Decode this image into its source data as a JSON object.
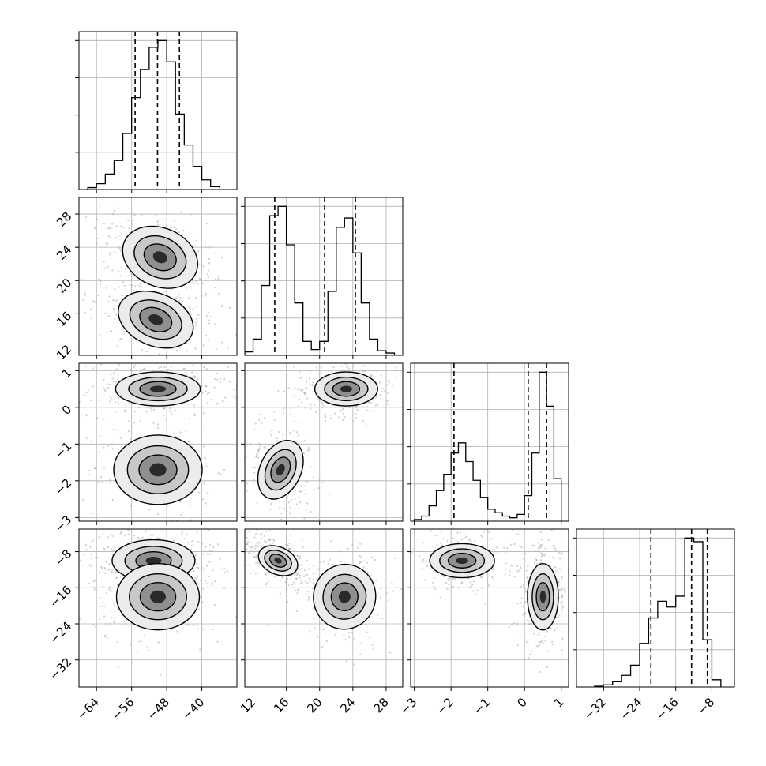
{
  "chart_data": {
    "type": "corner",
    "title": "",
    "grid": true,
    "parameters": [
      {
        "range": [
          -68,
          -32
        ],
        "ticks": [
          -64,
          -56,
          -48,
          -40
        ],
        "tick_labels": [
          "−64",
          "−56",
          "−48",
          "−40"
        ],
        "quantiles": [
          -55.2,
          -50.1,
          -45.1
        ],
        "hist_bins": [
          -66,
          -64,
          -62,
          -60,
          -58,
          -56,
          -54,
          -52,
          -50,
          -48,
          -46,
          -44,
          -42,
          -40,
          -38,
          -36
        ],
        "hist_values": [
          2,
          6,
          16,
          30,
          58,
          95,
          124,
          147,
          154,
          132,
          78,
          46,
          24,
          10,
          3,
          2
        ]
      },
      {
        "range": [
          11,
          30
        ],
        "ticks": [
          12,
          16,
          20,
          24,
          28
        ],
        "tick_labels": [
          "12",
          "16",
          "20",
          "24",
          "28"
        ],
        "quantiles": [
          14.6,
          20.6,
          24.3
        ],
        "hist_bins": [
          11,
          12,
          13,
          14,
          15,
          16,
          17,
          18,
          19,
          20,
          21,
          22,
          23,
          24,
          25,
          26,
          27,
          28,
          29
        ],
        "hist_values": [
          3,
          14,
          60,
          120,
          128,
          95,
          45,
          12,
          5,
          12,
          55,
          110,
          118,
          88,
          45,
          14,
          4,
          2
        ]
      },
      {
        "range": [
          -3.1,
          1.2
        ],
        "ticks": [
          -3,
          -2,
          -1,
          0,
          1
        ],
        "tick_labels": [
          "−3",
          "−2",
          "−1",
          "0",
          "1"
        ],
        "quantiles": [
          -1.92,
          0.1,
          0.6
        ],
        "hist_bins": [
          -3.0,
          -2.8,
          -2.6,
          -2.4,
          -2.2,
          -2.0,
          -1.8,
          -1.6,
          -1.4,
          -1.2,
          -1.0,
          -0.8,
          -0.6,
          -0.4,
          -0.2,
          0.0,
          0.2,
          0.4,
          0.6,
          0.8,
          1.0
        ],
        "hist_values": [
          2,
          6,
          18,
          36,
          55,
          80,
          92,
          70,
          48,
          28,
          14,
          10,
          6,
          4,
          8,
          30,
          80,
          175,
          135,
          50
        ]
      },
      {
        "range": [
          -38,
          -3
        ],
        "ticks": [
          -32,
          -24,
          -16,
          -8
        ],
        "tick_labels": [
          "−32",
          "−24",
          "−16",
          "−8"
        ],
        "quantiles": [
          -21.5,
          -12.5,
          -9.0
        ],
        "hist_bins": [
          -34,
          -32,
          -30,
          -28,
          -26,
          -24,
          -22,
          -20,
          -18,
          -16,
          -14,
          -12,
          -10,
          -8,
          -6
        ],
        "hist_values": [
          1,
          3,
          8,
          16,
          30,
          60,
          95,
          118,
          110,
          125,
          205,
          200,
          65,
          10
        ]
      }
    ],
    "blobs": {
      "1-0": [
        {
          "cx": -49.5,
          "cy": 22.8,
          "sx": 4.6,
          "sy": 2.0,
          "rho": -0.55,
          "w": 1.0
        },
        {
          "cx": -50.5,
          "cy": 15.3,
          "sx": 4.6,
          "sy": 1.8,
          "rho": -0.55,
          "w": 1.0
        }
      ],
      "2-0": [
        {
          "cx": -50,
          "cy": 0.5,
          "sx": 4.6,
          "sy": 0.22,
          "rho": 0,
          "w": 1.2
        },
        {
          "cx": -50,
          "cy": -1.7,
          "sx": 4.8,
          "sy": 0.45,
          "rho": 0,
          "w": 0.75
        }
      ],
      "3-0": [
        {
          "cx": -51,
          "cy": -10,
          "sx": 4.5,
          "sy": 2.2,
          "rho": 0,
          "w": 1.2
        },
        {
          "cx": -50,
          "cy": -18,
          "sx": 4.5,
          "sy": 3.5,
          "rho": 0,
          "w": 0.7
        }
      ],
      "2-1": [
        {
          "cx": 23.2,
          "cy": 0.5,
          "sx": 1.8,
          "sy": 0.22,
          "rho": 0,
          "w": 1.2
        },
        {
          "cx": 15.3,
          "cy": -1.7,
          "sx": 1.2,
          "sy": 0.42,
          "rho": -0.3,
          "w": 0.85
        }
      ],
      "3-1": [
        {
          "cx": 15.0,
          "cy": -10,
          "sx": 1.3,
          "sy": 1.8,
          "rho": -0.6,
          "w": 1.2
        },
        {
          "cx": 23.0,
          "cy": -18,
          "sx": 1.8,
          "sy": 3.5,
          "rho": -0.2,
          "w": 0.75
        }
      ],
      "3-2": [
        {
          "cx": -1.7,
          "cy": -10,
          "sx": 0.42,
          "sy": 1.8,
          "rho": 0,
          "w": 1.1
        },
        {
          "cx": 0.5,
          "cy": -18,
          "sx": 0.2,
          "sy": 3.5,
          "rho": 0,
          "w": 1.1
        }
      ]
    }
  }
}
